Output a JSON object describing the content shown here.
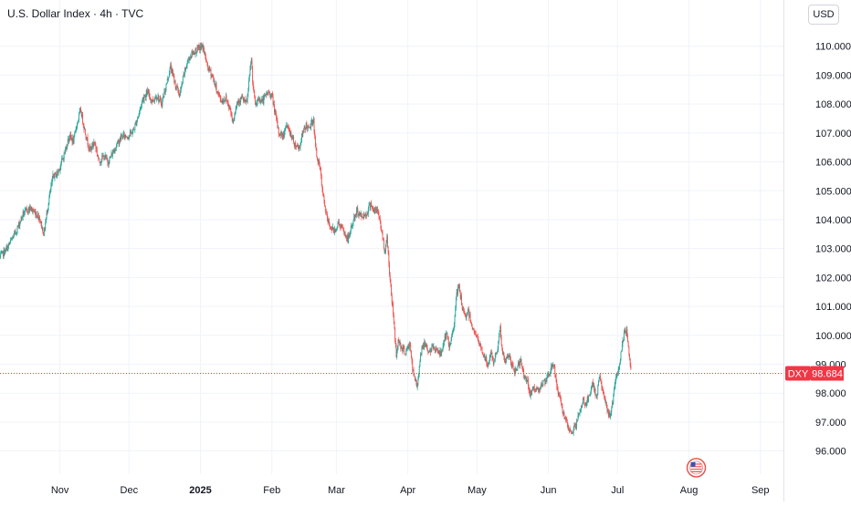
{
  "header": {
    "title": "U.S. Dollar Index · 4h · TVC",
    "currency": "USD"
  },
  "colors": {
    "up": "#26a69a",
    "down": "#ef5350",
    "price_line": "#f23645",
    "grid": "#f0f3fa",
    "text": "#131722"
  },
  "price_label": {
    "symbol": "DXY",
    "value": "98.684"
  },
  "icons": {
    "flag": "us-flag-icon"
  },
  "chart_data": {
    "type": "candlestick",
    "y_ticks": [
      "96.000",
      "97.000",
      "98.000",
      "99.000",
      "100.000",
      "101.000",
      "102.000",
      "103.000",
      "104.000",
      "105.000",
      "106.000",
      "107.000",
      "108.000",
      "109.000",
      "110.000"
    ],
    "y_tick_values": [
      96,
      97,
      98,
      99,
      100,
      101,
      102,
      103,
      104,
      105,
      106,
      107,
      108,
      109,
      110
    ],
    "ylim": [
      95.2,
      111.6
    ],
    "x_ticks": [
      {
        "label": "Nov",
        "x": 31,
        "bold": false
      },
      {
        "label": "Dec",
        "x": 61,
        "bold": false
      },
      {
        "label": "2025",
        "x": 92,
        "bold": true
      },
      {
        "label": "Feb",
        "x": 123,
        "bold": false
      },
      {
        "label": "Mar",
        "x": 151,
        "bold": false
      },
      {
        "label": "Apr",
        "x": 182,
        "bold": false
      },
      {
        "label": "May",
        "x": 212,
        "bold": false
      },
      {
        "label": "Jun",
        "x": 243,
        "bold": false
      },
      {
        "label": "Jul",
        "x": 273,
        "bold": false
      },
      {
        "label": "Aug",
        "x": 304,
        "bold": false
      },
      {
        "label": "Sep",
        "x": 335,
        "bold": false
      }
    ],
    "xlim": [
      5,
      345
    ],
    "last_price": 98.684,
    "path_points": [
      [
        5,
        102.7
      ],
      [
        8,
        103.0
      ],
      [
        12,
        103.6
      ],
      [
        15,
        104.2
      ],
      [
        18,
        104.4
      ],
      [
        22,
        104.1
      ],
      [
        24,
        103.5
      ],
      [
        26,
        104.6
      ],
      [
        28,
        105.5
      ],
      [
        30,
        105.6
      ],
      [
        33,
        106.3
      ],
      [
        35,
        106.9
      ],
      [
        37,
        106.7
      ],
      [
        38,
        107.2
      ],
      [
        40,
        107.8
      ],
      [
        42,
        107.0
      ],
      [
        44,
        106.4
      ],
      [
        46,
        106.7
      ],
      [
        48,
        106.0
      ],
      [
        50,
        106.2
      ],
      [
        52,
        106.0
      ],
      [
        55,
        106.5
      ],
      [
        58,
        106.9
      ],
      [
        61,
        106.9
      ],
      [
        63,
        107.1
      ],
      [
        65,
        107.6
      ],
      [
        67,
        108.2
      ],
      [
        69,
        108.4
      ],
      [
        71,
        108.1
      ],
      [
        73,
        108.3
      ],
      [
        75,
        108.0
      ],
      [
        77,
        108.6
      ],
      [
        79,
        109.3
      ],
      [
        81,
        108.7
      ],
      [
        83,
        108.3
      ],
      [
        85,
        109.1
      ],
      [
        87,
        109.6
      ],
      [
        89,
        109.8
      ],
      [
        91,
        109.9
      ],
      [
        93,
        110.0
      ],
      [
        95,
        109.3
      ],
      [
        97,
        109.0
      ],
      [
        99,
        108.5
      ],
      [
        101,
        108.1
      ],
      [
        103,
        108.2
      ],
      [
        105,
        107.8
      ],
      [
        106,
        107.4
      ],
      [
        108,
        108.1
      ],
      [
        110,
        108.2
      ],
      [
        112,
        108.0
      ],
      [
        113,
        108.7
      ],
      [
        114,
        109.6
      ],
      [
        115,
        108.4
      ],
      [
        116,
        107.9
      ],
      [
        117,
        108.2
      ],
      [
        119,
        108.1
      ],
      [
        121,
        108.4
      ],
      [
        123,
        108.3
      ],
      [
        125,
        107.4
      ],
      [
        126,
        107.0
      ],
      [
        128,
        106.9
      ],
      [
        129,
        107.3
      ],
      [
        131,
        107.0
      ],
      [
        133,
        106.6
      ],
      [
        135,
        106.5
      ],
      [
        136,
        106.9
      ],
      [
        138,
        107.3
      ],
      [
        139,
        107.1
      ],
      [
        141,
        107.5
      ],
      [
        142,
        106.4
      ],
      [
        144,
        105.7
      ],
      [
        145,
        104.9
      ],
      [
        147,
        104.0
      ],
      [
        148,
        103.8
      ],
      [
        150,
        103.6
      ],
      [
        152,
        103.9
      ],
      [
        154,
        103.6
      ],
      [
        156,
        103.3
      ],
      [
        158,
        103.9
      ],
      [
        160,
        104.3
      ],
      [
        162,
        104.1
      ],
      [
        164,
        104.2
      ],
      [
        165,
        104.4
      ],
      [
        166,
        104.6
      ],
      [
        167,
        104.3
      ],
      [
        169,
        104.3
      ],
      [
        170,
        103.9
      ],
      [
        172,
        102.9
      ],
      [
        173,
        103.4
      ],
      [
        174,
        102.2
      ],
      [
        175,
        101.3
      ],
      [
        176,
        100.4
      ],
      [
        177,
        99.3
      ],
      [
        178,
        99.9
      ],
      [
        179,
        99.6
      ],
      [
        181,
        99.4
      ],
      [
        183,
        99.7
      ],
      [
        184,
        98.8
      ],
      [
        186,
        98.2
      ],
      [
        187,
        99.0
      ],
      [
        188,
        99.6
      ],
      [
        190,
        99.7
      ],
      [
        191,
        99.4
      ],
      [
        193,
        99.6
      ],
      [
        195,
        99.5
      ],
      [
        196,
        99.3
      ],
      [
        197,
        99.6
      ],
      [
        198,
        99.9
      ],
      [
        199,
        100.0
      ],
      [
        200,
        99.5
      ],
      [
        202,
        100.4
      ],
      [
        203,
        101.3
      ],
      [
        204,
        101.7
      ],
      [
        205,
        101.3
      ],
      [
        206,
        100.8
      ],
      [
        207,
        100.6
      ],
      [
        208,
        100.9
      ],
      [
        210,
        100.3
      ],
      [
        212,
        99.9
      ],
      [
        213,
        99.7
      ],
      [
        214,
        99.5
      ],
      [
        215,
        99.3
      ],
      [
        217,
        98.9
      ],
      [
        218,
        99.5
      ],
      [
        219,
        99.0
      ],
      [
        220,
        99.3
      ],
      [
        221,
        99.6
      ],
      [
        222,
        100.3
      ],
      [
        223,
        99.4
      ],
      [
        224,
        99.1
      ],
      [
        226,
        99.3
      ],
      [
        228,
        98.7
      ],
      [
        230,
        99.0
      ],
      [
        231,
        99.1
      ],
      [
        232,
        98.7
      ],
      [
        234,
        98.4
      ],
      [
        235,
        97.8
      ],
      [
        236,
        98.2
      ],
      [
        238,
        98.1
      ],
      [
        240,
        98.3
      ],
      [
        242,
        98.4
      ],
      [
        244,
        98.8
      ],
      [
        245,
        99.1
      ],
      [
        246,
        98.6
      ],
      [
        247,
        98.1
      ],
      [
        248,
        97.8
      ],
      [
        249,
        97.5
      ],
      [
        250,
        97.1
      ],
      [
        251,
        96.9
      ],
      [
        252,
        96.7
      ],
      [
        253,
        96.6
      ],
      [
        254,
        96.8
      ],
      [
        255,
        96.9
      ],
      [
        256,
        97.2
      ],
      [
        257,
        97.4
      ],
      [
        258,
        97.8
      ],
      [
        259,
        97.6
      ],
      [
        261,
        97.9
      ],
      [
        262,
        98.3
      ],
      [
        264,
        97.9
      ],
      [
        265,
        98.6
      ],
      [
        266,
        98.3
      ],
      [
        267,
        97.9
      ],
      [
        268,
        97.6
      ],
      [
        269,
        97.3
      ],
      [
        270,
        97.2
      ],
      [
        271,
        97.8
      ],
      [
        272,
        98.4
      ],
      [
        273,
        98.6
      ],
      [
        274,
        99.1
      ],
      [
        275,
        99.6
      ],
      [
        276,
        100.1
      ],
      [
        277,
        100.2
      ],
      [
        278,
        99.3
      ],
      [
        279,
        98.7
      ]
    ]
  }
}
